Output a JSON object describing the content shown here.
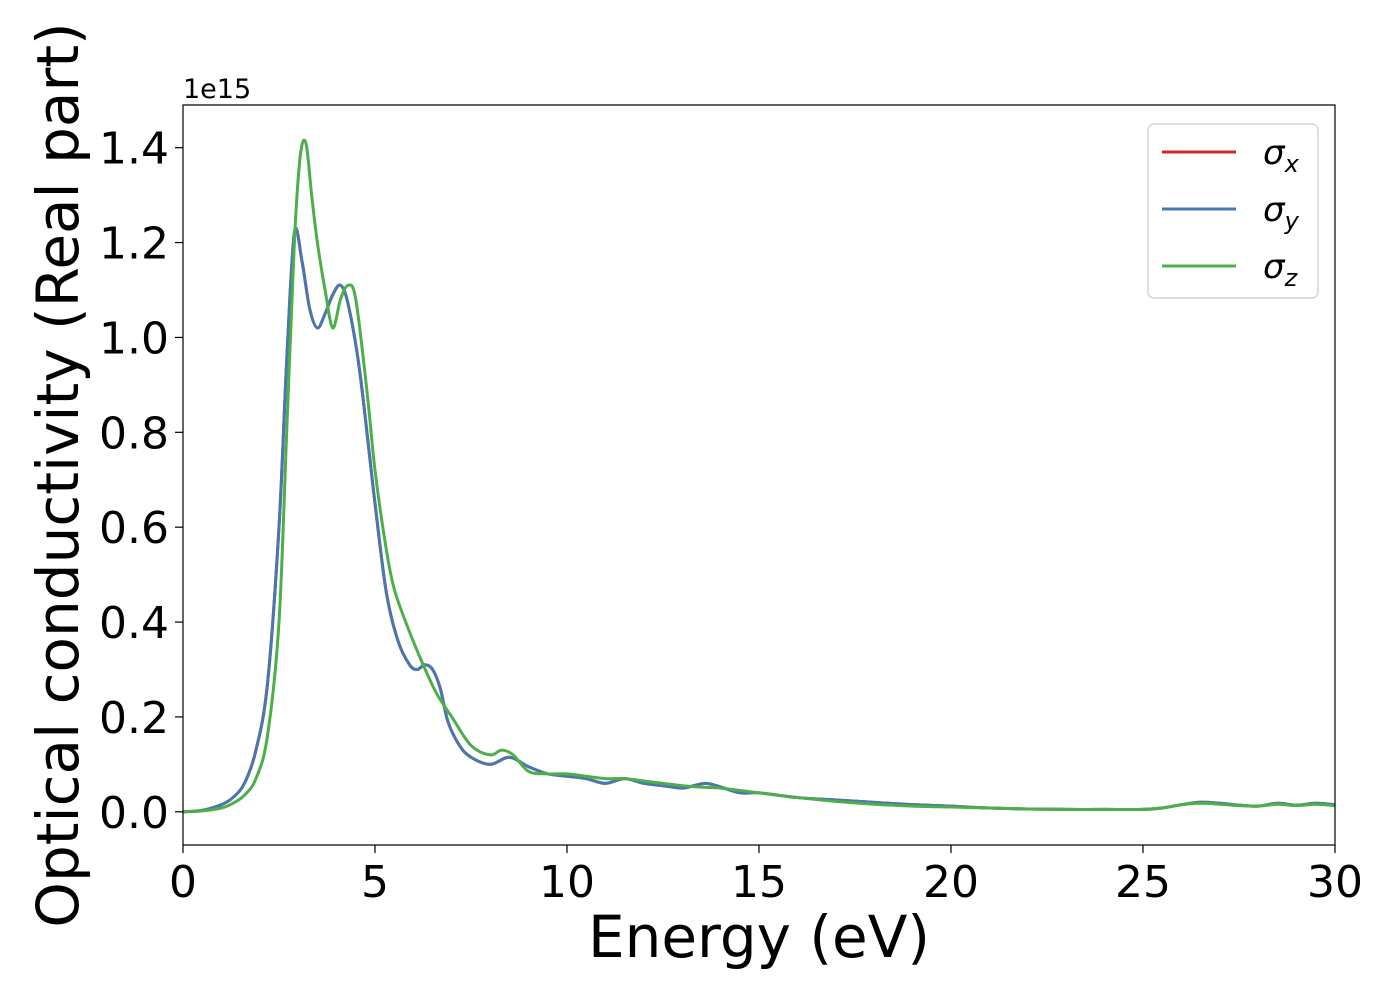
{
  "chart_data": {
    "type": "line",
    "title": "",
    "xlabel": "Energy (eV)",
    "ylabel": "Optical conductivity (Real part)",
    "y_offset_label": "1e15",
    "xlim": [
      0,
      30
    ],
    "ylim": [
      -0.07,
      1.49
    ],
    "x_ticks": [
      0,
      5,
      10,
      15,
      20,
      25,
      30
    ],
    "x_tick_labels": [
      "0",
      "5",
      "10",
      "15",
      "20",
      "25",
      "30"
    ],
    "y_ticks": [
      0.0,
      0.2,
      0.4,
      0.6,
      0.8,
      1.0,
      1.2,
      1.4
    ],
    "y_tick_labels": [
      "0.0",
      "0.2",
      "0.4",
      "0.6",
      "0.8",
      "1.0",
      "1.2",
      "1.4"
    ],
    "grid": false,
    "legend_position": "top-right",
    "series": [
      {
        "name": "σx",
        "legend_base": "σ",
        "legend_sub": "x",
        "color": "#d62728",
        "x": [
          0,
          0.5,
          1.0,
          1.3,
          1.6,
          1.9,
          2.2,
          2.5,
          2.7,
          2.9,
          3.1,
          3.3,
          3.5,
          3.7,
          3.9,
          4.1,
          4.3,
          4.6,
          5.0,
          5.3,
          5.6,
          5.9,
          6.1,
          6.3,
          6.5,
          6.7,
          6.9,
          7.2,
          7.5,
          8.0,
          8.5,
          9.0,
          9.5,
          10,
          10.5,
          11,
          11.5,
          12,
          12.5,
          13,
          13.3,
          13.6,
          13.9,
          14.5,
          15,
          16,
          17,
          18,
          19,
          20,
          21,
          22,
          23,
          24,
          25,
          25.5,
          26,
          26.5,
          27,
          27.5,
          28,
          28.5,
          29,
          29.5,
          30
        ],
        "y": [
          0.0,
          0.003,
          0.015,
          0.03,
          0.06,
          0.13,
          0.27,
          0.6,
          0.95,
          1.22,
          1.16,
          1.06,
          1.02,
          1.05,
          1.09,
          1.11,
          1.07,
          0.93,
          0.65,
          0.46,
          0.36,
          0.31,
          0.3,
          0.31,
          0.3,
          0.26,
          0.19,
          0.14,
          0.115,
          0.1,
          0.115,
          0.095,
          0.08,
          0.075,
          0.07,
          0.06,
          0.07,
          0.06,
          0.055,
          0.05,
          0.055,
          0.06,
          0.055,
          0.04,
          0.04,
          0.03,
          0.025,
          0.02,
          0.015,
          0.012,
          0.008,
          0.006,
          0.005,
          0.005,
          0.005,
          0.008,
          0.015,
          0.02,
          0.018,
          0.014,
          0.012,
          0.018,
          0.014,
          0.018,
          0.015
        ]
      },
      {
        "name": "σy",
        "legend_base": "σ",
        "legend_sub": "y",
        "color": "#4878b0",
        "x": [
          0,
          0.5,
          1.0,
          1.3,
          1.6,
          1.9,
          2.2,
          2.5,
          2.7,
          2.9,
          3.1,
          3.3,
          3.5,
          3.7,
          3.9,
          4.1,
          4.3,
          4.6,
          5.0,
          5.3,
          5.6,
          5.9,
          6.1,
          6.3,
          6.5,
          6.7,
          6.9,
          7.2,
          7.5,
          8.0,
          8.5,
          9.0,
          9.5,
          10,
          10.5,
          11,
          11.5,
          12,
          12.5,
          13,
          13.3,
          13.6,
          13.9,
          14.5,
          15,
          16,
          17,
          18,
          19,
          20,
          21,
          22,
          23,
          24,
          25,
          25.5,
          26,
          26.5,
          27,
          27.5,
          28,
          28.5,
          29,
          29.5,
          30
        ],
        "y": [
          0.0,
          0.003,
          0.015,
          0.03,
          0.06,
          0.13,
          0.27,
          0.6,
          0.95,
          1.22,
          1.16,
          1.06,
          1.02,
          1.05,
          1.09,
          1.11,
          1.07,
          0.93,
          0.65,
          0.46,
          0.36,
          0.31,
          0.3,
          0.31,
          0.3,
          0.26,
          0.19,
          0.14,
          0.115,
          0.1,
          0.115,
          0.095,
          0.08,
          0.075,
          0.07,
          0.06,
          0.07,
          0.06,
          0.055,
          0.05,
          0.055,
          0.06,
          0.055,
          0.04,
          0.04,
          0.03,
          0.025,
          0.02,
          0.015,
          0.012,
          0.008,
          0.006,
          0.005,
          0.005,
          0.005,
          0.008,
          0.015,
          0.02,
          0.018,
          0.014,
          0.012,
          0.018,
          0.014,
          0.018,
          0.015
        ]
      },
      {
        "name": "σz",
        "legend_base": "σ",
        "legend_sub": "z",
        "color": "#4daf4a",
        "x": [
          0,
          0.5,
          1.0,
          1.3,
          1.6,
          1.9,
          2.2,
          2.5,
          2.7,
          2.9,
          3.05,
          3.2,
          3.35,
          3.5,
          3.7,
          3.9,
          4.1,
          4.3,
          4.5,
          4.8,
          5.0,
          5.3,
          5.5,
          5.8,
          6.2,
          6.6,
          7.0,
          7.5,
          8.0,
          8.3,
          8.6,
          9.0,
          9.5,
          10,
          10.5,
          11,
          11.5,
          12,
          12.5,
          13,
          13.5,
          14,
          14.5,
          15,
          16,
          17,
          18,
          19,
          20,
          21,
          22,
          23,
          24,
          25,
          25.5,
          26,
          26.5,
          27,
          27.5,
          28,
          28.5,
          29,
          29.5,
          30
        ],
        "y": [
          0.0,
          0.002,
          0.008,
          0.018,
          0.035,
          0.07,
          0.16,
          0.4,
          0.8,
          1.2,
          1.38,
          1.41,
          1.3,
          1.2,
          1.1,
          1.02,
          1.08,
          1.11,
          1.08,
          0.88,
          0.72,
          0.55,
          0.47,
          0.4,
          0.32,
          0.25,
          0.2,
          0.14,
          0.12,
          0.13,
          0.12,
          0.085,
          0.08,
          0.08,
          0.075,
          0.07,
          0.07,
          0.065,
          0.06,
          0.055,
          0.052,
          0.05,
          0.045,
          0.04,
          0.03,
          0.022,
          0.016,
          0.012,
          0.01,
          0.008,
          0.006,
          0.005,
          0.005,
          0.005,
          0.008,
          0.015,
          0.018,
          0.016,
          0.013,
          0.012,
          0.016,
          0.013,
          0.016,
          0.013
        ]
      }
    ]
  }
}
